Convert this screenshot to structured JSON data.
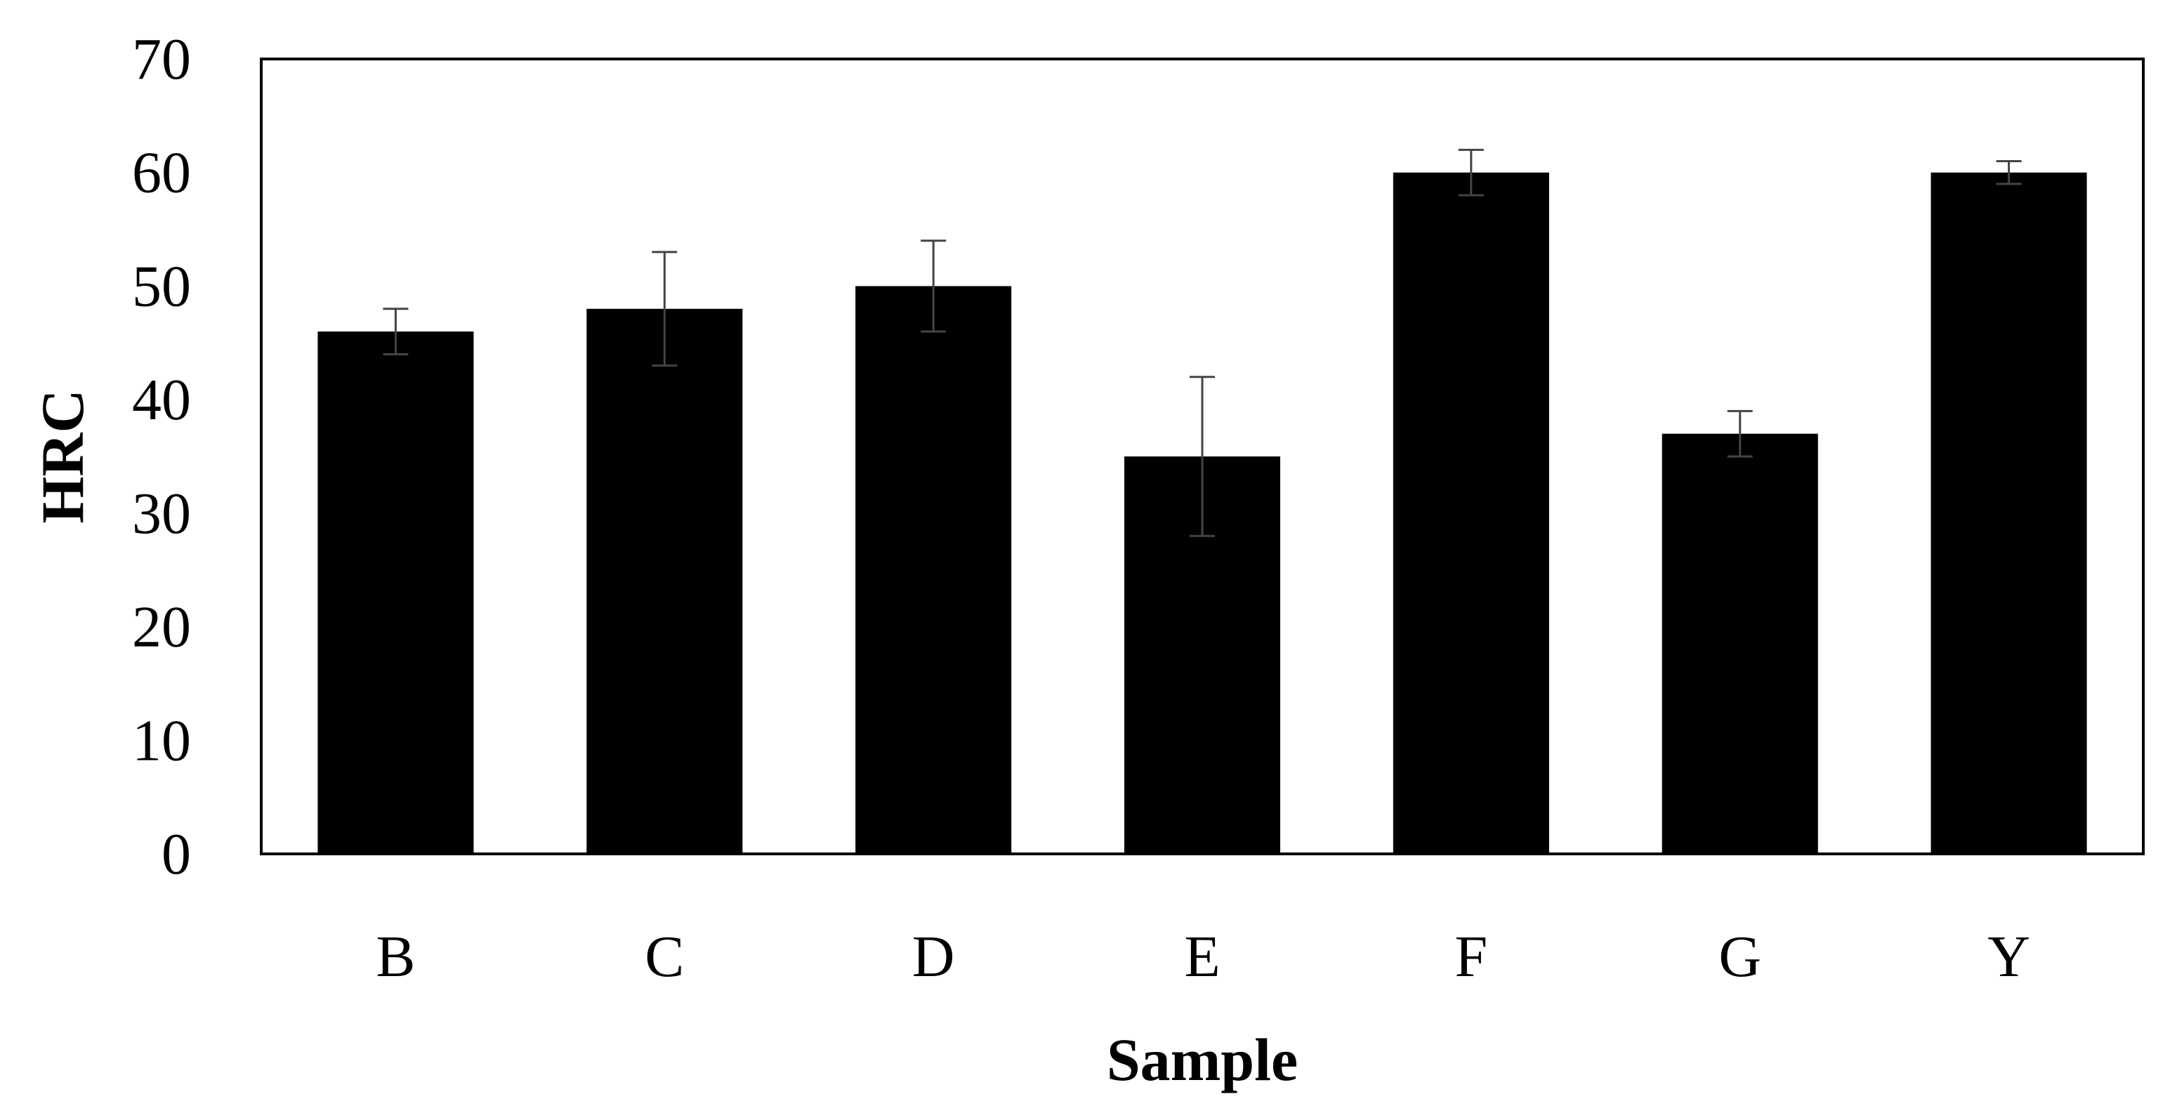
{
  "chart_data": {
    "type": "bar",
    "xlabel": "Sample",
    "ylabel": "HRC",
    "categories": [
      "B",
      "C",
      "D",
      "E",
      "F",
      "G",
      "Y"
    ],
    "values": [
      46,
      48,
      50,
      35,
      60,
      37,
      60
    ],
    "errors": [
      2,
      5,
      4,
      7,
      2,
      2,
      1
    ],
    "ylim": [
      0,
      70
    ],
    "yticks": [
      0,
      10,
      20,
      30,
      40,
      50,
      60,
      70
    ],
    "grid": false,
    "legend": "none",
    "bar_color": "#000000",
    "error_bar_color": "#444444"
  }
}
